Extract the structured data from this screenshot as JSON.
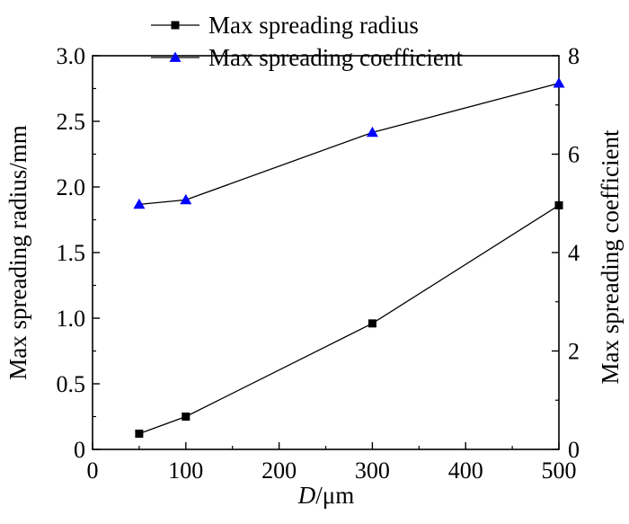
{
  "chart_data": {
    "type": "line",
    "xlabel_italic": "D",
    "xlabel_unit": "/μm",
    "ylabel": "Max spreading radius/mm",
    "y2label": "Max spreading coefficient",
    "xlim": [
      0,
      500
    ],
    "ylim": [
      0,
      3.0
    ],
    "y2lim": [
      0,
      8
    ],
    "xticks": [
      0,
      100,
      200,
      300,
      400,
      500
    ],
    "yticks": [
      0,
      0.5,
      1.0,
      1.5,
      2.0,
      2.5,
      3.0
    ],
    "y2ticks": [
      0,
      2,
      4,
      6,
      8
    ],
    "xtick_labels": [
      "0",
      "100",
      "200",
      "300",
      "400",
      "500"
    ],
    "ytick_labels": [
      "0",
      "0.5",
      "1.0",
      "1.5",
      "2.0",
      "2.5",
      "3.0"
    ],
    "y2tick_labels": [
      "0",
      "2",
      "4",
      "6",
      "8"
    ],
    "grid": false,
    "legend_position": "top",
    "series": [
      {
        "name": "Max spreading radius",
        "axis": "left",
        "marker": "square",
        "color": "#000000",
        "x": [
          50,
          100,
          300,
          500
        ],
        "y": [
          0.12,
          0.25,
          0.96,
          1.86
        ]
      },
      {
        "name": "Max spreading coefficient",
        "axis": "right",
        "marker": "triangle",
        "color": "#0000ff",
        "x": [
          50,
          100,
          300,
          500
        ],
        "y": [
          4.98,
          5.07,
          6.44,
          7.44
        ]
      }
    ]
  }
}
